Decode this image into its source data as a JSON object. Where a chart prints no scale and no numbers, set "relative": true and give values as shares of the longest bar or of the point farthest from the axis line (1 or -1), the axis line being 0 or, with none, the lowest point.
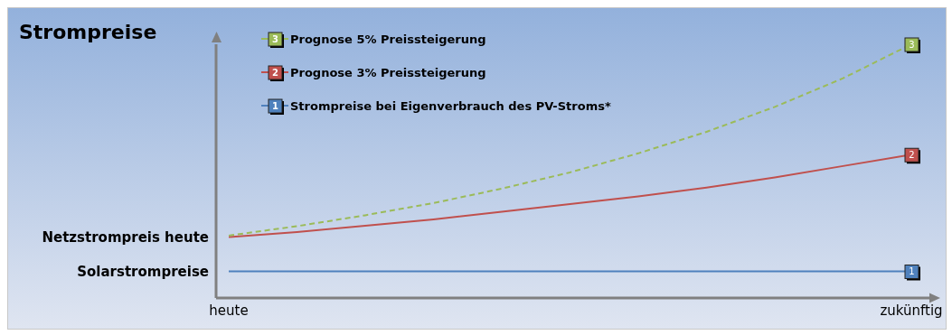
{
  "chart_data": {
    "type": "line",
    "title": "Strompreise",
    "relative": true,
    "legend": "top left",
    "marker": "none",
    "grid": false,
    "categories": [
      "heute",
      null,
      null,
      null,
      null,
      null,
      null,
      null,
      null,
      null,
      "zukünftig"
    ],
    "series": [
      {
        "name": "Strompreise bei Eigenverbrauch des PV-Stroms*",
        "color": "#4f81bd",
        "line_style": "solid",
        "values": [
          0.105,
          0.105,
          0.105,
          0.105,
          0.105,
          0.105,
          0.105,
          0.105,
          0.105,
          0.105,
          0.105
        ]
      },
      {
        "name": "Prognose 3% Preissteigerung",
        "color": "#c0504d",
        "line_style": "solid",
        "values": [
          0.24,
          0.26,
          0.285,
          0.31,
          0.34,
          0.37,
          0.4,
          0.435,
          0.475,
          0.52,
          0.565
        ]
      },
      {
        "name": "Prognose 5% Preissteigerung",
        "color": "#9bbb59",
        "line_style": "dashed",
        "values": [
          0.246,
          0.283,
          0.326,
          0.374,
          0.431,
          0.495,
          0.57,
          0.655,
          0.753,
          0.866,
          1.0
        ]
      }
    ],
    "annotations": [
      {
        "text": "1",
        "x": "zukünftig",
        "y": 0.105
      },
      {
        "text": "2",
        "x": "zukünftig",
        "y": 0.565
      },
      {
        "text": "3",
        "x": "zukünftig",
        "y": 1.0
      },
      {
        "text": "Netzstrompreis heute",
        "x": "heute",
        "y": 0.24
      },
      {
        "text": "Solarstrompreise",
        "x": "heute",
        "y": 0.105
      }
    ]
  }
}
